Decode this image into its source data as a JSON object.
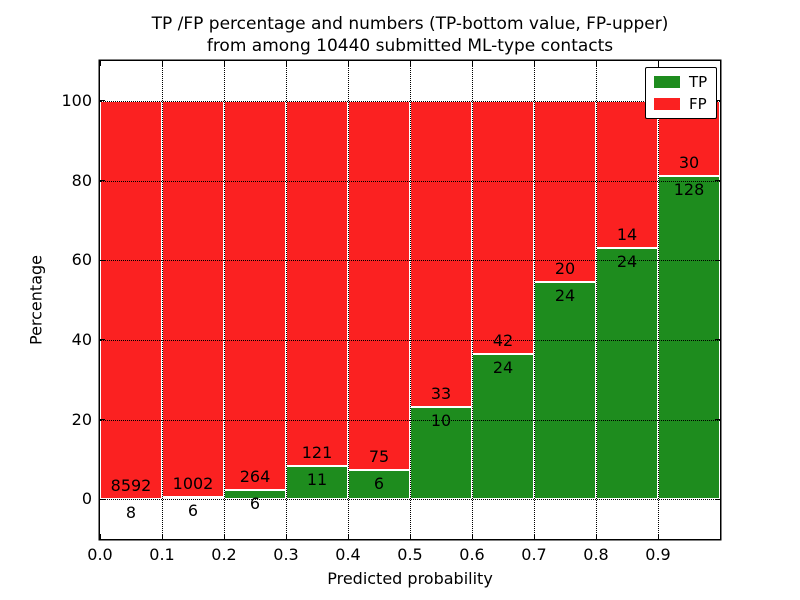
{
  "figure": {
    "background": "#ffffff"
  },
  "chart_data": {
    "type": "bar",
    "stacked": true,
    "title_line1": "TP /FP percentage and numbers (TP-bottom value, FP-upper)",
    "title_line2": "from among 10440 submitted ML-type contacts",
    "xlabel": "Predicted probability",
    "ylabel": "Percentage",
    "total_submitted_contacts": 10440,
    "xlim": [
      0.0,
      1.0
    ],
    "ylim": [
      -10,
      110
    ],
    "bin_edges": [
      0.0,
      0.1,
      0.2,
      0.3,
      0.4,
      0.5,
      0.6,
      0.7,
      0.8,
      0.9,
      1.0
    ],
    "x_tick_values": [
      0.0,
      0.1,
      0.2,
      0.3,
      0.4,
      0.5,
      0.6,
      0.7,
      0.8,
      0.9
    ],
    "x_tick_labels": [
      "0.0",
      "0.1",
      "0.2",
      "0.3",
      "0.4",
      "0.5",
      "0.6",
      "0.7",
      "0.8",
      "0.9"
    ],
    "y_tick_values": [
      0,
      20,
      40,
      60,
      80,
      100
    ],
    "y_tick_labels": [
      "0",
      "20",
      "40",
      "60",
      "80",
      "100"
    ],
    "grid_style": "dotted",
    "legend_position": "upper-right",
    "legend": [
      "TP",
      "FP"
    ],
    "series": [
      {
        "name": "TP",
        "color": "#1e8c1e",
        "counts": [
          8,
          6,
          6,
          11,
          6,
          10,
          24,
          24,
          24,
          128
        ],
        "percent_of_bin": [
          0.09,
          0.6,
          2.22,
          8.33,
          7.41,
          23.26,
          36.36,
          54.55,
          63.16,
          81.01
        ]
      },
      {
        "name": "FP",
        "color": "#fb2121",
        "counts": [
          8592,
          1002,
          264,
          121,
          75,
          33,
          42,
          20,
          14,
          30
        ],
        "percent_of_bin": [
          99.91,
          99.4,
          97.78,
          91.67,
          92.59,
          76.74,
          63.64,
          45.45,
          36.84,
          18.99
        ]
      }
    ]
  }
}
